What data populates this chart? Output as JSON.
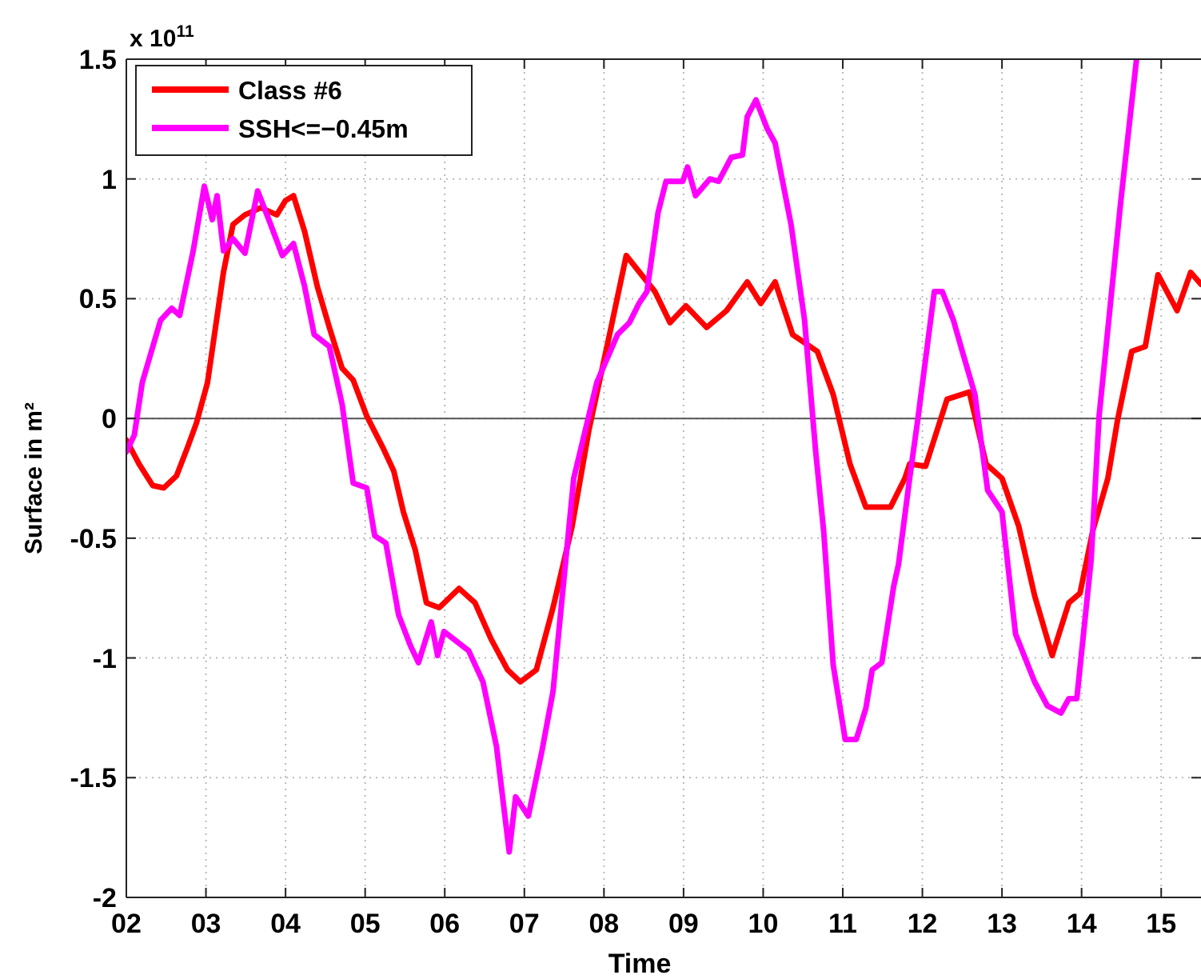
{
  "chart_data": {
    "type": "line",
    "xlabel": "Time",
    "ylabel": "Surface in m²",
    "annotations": [
      "x 10$^{11}$"
    ],
    "xlim": [
      2,
      15.5
    ],
    "xticks": [
      {
        "value": 2,
        "label": "02"
      },
      {
        "value": 3,
        "label": "03"
      },
      {
        "value": 4,
        "label": "04"
      },
      {
        "value": 5,
        "label": "05"
      },
      {
        "value": 6,
        "label": "06"
      },
      {
        "value": 7,
        "label": "07"
      },
      {
        "value": 8,
        "label": "08"
      },
      {
        "value": 9,
        "label": "09"
      },
      {
        "value": 10,
        "label": "10"
      },
      {
        "value": 11,
        "label": "11"
      },
      {
        "value": 12,
        "label": "12"
      },
      {
        "value": 13,
        "label": "13"
      },
      {
        "value": 14,
        "label": "14"
      },
      {
        "value": 15,
        "label": "15"
      }
    ],
    "ylim": [
      -2,
      1.5
    ],
    "yticks": [
      -2,
      -1.5,
      -1,
      -0.5,
      0,
      0.5,
      1,
      1.5
    ],
    "grid": true,
    "legend": "top left",
    "line_style": "solid",
    "ref_lines": [
      {
        "axis": "y",
        "value": 0,
        "color": "#555555"
      }
    ],
    "series": [
      {
        "name": "Class #6",
        "color": "#ff0000",
        "x": [
          2.0,
          2.16,
          2.33,
          2.47,
          2.63,
          2.77,
          2.88,
          3.02,
          3.12,
          3.22,
          3.34,
          3.49,
          3.69,
          3.89,
          4.0,
          4.1,
          4.24,
          4.4,
          4.55,
          4.71,
          4.85,
          5.02,
          5.22,
          5.36,
          5.48,
          5.63,
          5.77,
          5.93,
          6.18,
          6.38,
          6.58,
          6.79,
          6.95,
          7.15,
          7.36,
          7.6,
          7.81,
          8.07,
          8.28,
          8.64,
          8.83,
          9.03,
          9.29,
          9.54,
          9.8,
          9.97,
          10.15,
          10.37,
          10.68,
          10.88,
          11.09,
          11.29,
          11.6,
          11.78,
          11.84,
          12.04,
          12.31,
          12.59,
          12.8,
          13.0,
          13.21,
          13.41,
          13.63,
          13.84,
          13.98,
          14.14,
          14.33,
          14.45,
          14.63,
          14.8,
          14.96,
          15.2,
          15.37,
          15.5
        ],
        "values": [
          -0.09,
          -0.19,
          -0.28,
          -0.29,
          -0.24,
          -0.12,
          -0.02,
          0.15,
          0.38,
          0.61,
          0.81,
          0.85,
          0.88,
          0.85,
          0.91,
          0.93,
          0.78,
          0.55,
          0.38,
          0.21,
          0.16,
          0.01,
          -0.12,
          -0.22,
          -0.39,
          -0.55,
          -0.77,
          -0.79,
          -0.71,
          -0.77,
          -0.92,
          -1.05,
          -1.1,
          -1.05,
          -0.79,
          -0.45,
          -0.05,
          0.35,
          0.68,
          0.53,
          0.4,
          0.47,
          0.38,
          0.45,
          0.57,
          0.48,
          0.57,
          0.35,
          0.28,
          0.1,
          -0.19,
          -0.37,
          -0.37,
          -0.25,
          -0.19,
          -0.2,
          0.08,
          0.11,
          -0.19,
          -0.25,
          -0.45,
          -0.74,
          -0.99,
          -0.77,
          -0.73,
          -0.47,
          -0.25,
          -0.01,
          0.28,
          0.3,
          0.6,
          0.45,
          0.61,
          0.56
        ]
      },
      {
        "name": "SSH<=−0.45m",
        "color": "#ff00ff",
        "x": [
          2.0,
          2.1,
          2.2,
          2.43,
          2.57,
          2.67,
          2.84,
          2.98,
          3.08,
          3.14,
          3.22,
          3.34,
          3.49,
          3.65,
          3.79,
          3.96,
          4.1,
          4.24,
          4.36,
          4.55,
          4.71,
          4.85,
          5.02,
          5.12,
          5.26,
          5.42,
          5.57,
          5.67,
          5.83,
          5.91,
          5.99,
          6.3,
          6.48,
          6.65,
          6.81,
          6.89,
          7.05,
          7.22,
          7.36,
          7.62,
          7.91,
          8.17,
          8.32,
          8.44,
          8.54,
          8.68,
          8.78,
          8.99,
          9.05,
          9.15,
          9.33,
          9.44,
          9.6,
          9.74,
          9.8,
          9.91,
          10.05,
          10.15,
          10.35,
          10.52,
          10.66,
          10.76,
          10.88,
          11.03,
          11.17,
          11.29,
          11.37,
          11.49,
          11.64,
          11.7,
          11.84,
          11.94,
          12.15,
          12.25,
          12.39,
          12.51,
          12.66,
          12.82,
          13.0,
          13.17,
          13.41,
          13.57,
          13.74,
          13.84,
          13.94,
          14.12,
          14.22,
          14.49,
          14.69
        ],
        "values": [
          -0.14,
          -0.07,
          0.15,
          0.41,
          0.46,
          0.43,
          0.7,
          0.97,
          0.83,
          0.93,
          0.7,
          0.75,
          0.69,
          0.95,
          0.83,
          0.68,
          0.73,
          0.55,
          0.35,
          0.3,
          0.06,
          -0.27,
          -0.29,
          -0.49,
          -0.52,
          -0.82,
          -0.95,
          -1.02,
          -0.85,
          -0.99,
          -0.89,
          -0.97,
          -1.1,
          -1.37,
          -1.81,
          -1.58,
          -1.66,
          -1.39,
          -1.14,
          -0.25,
          0.15,
          0.35,
          0.4,
          0.48,
          0.53,
          0.86,
          0.99,
          0.99,
          1.05,
          0.93,
          1.0,
          0.99,
          1.09,
          1.1,
          1.26,
          1.33,
          1.21,
          1.15,
          0.81,
          0.41,
          -0.14,
          -0.47,
          -1.03,
          -1.34,
          -1.34,
          -1.21,
          -1.05,
          -1.02,
          -0.7,
          -0.61,
          -0.25,
          -0.01,
          0.53,
          0.53,
          0.41,
          0.27,
          0.1,
          -0.3,
          -0.39,
          -0.9,
          -1.1,
          -1.2,
          -1.23,
          -1.17,
          -1.17,
          -0.59,
          0.01,
          0.9,
          1.5
        ]
      }
    ]
  }
}
